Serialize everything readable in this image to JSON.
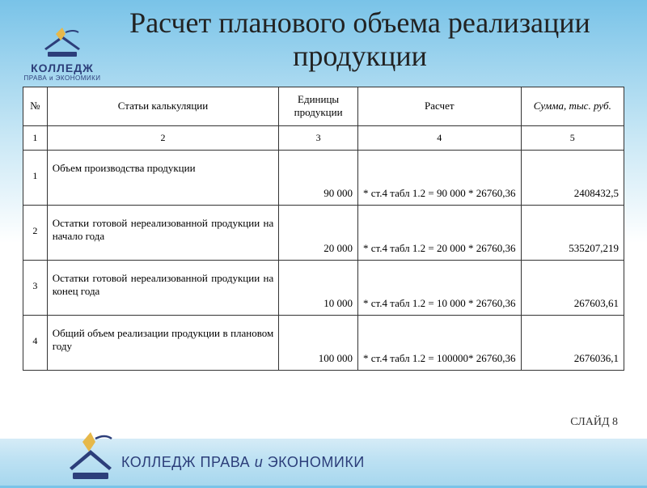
{
  "title": "Расчет планового объема реализации продукции",
  "logo": {
    "brand": "КОЛЛЕДЖ",
    "sub": "ПРАВА и ЭКОНОМИКИ"
  },
  "table": {
    "headers": {
      "num": "№",
      "article": "Статьи калькуляции",
      "units": "Единицы продукции",
      "calc": "Расчет",
      "sum": "Сумма, тыс. руб."
    },
    "colnums": [
      "1",
      "2",
      "3",
      "4",
      "5"
    ],
    "rows": [
      {
        "n": "1",
        "article": "Объем производства продукции",
        "units": "90 000",
        "calc": "* ст.4 табл 1.2 = 90 000 * 26760,36",
        "sum": "2408432,5"
      },
      {
        "n": "2",
        "article": "Остатки готовой нереализованной продукции на начало года",
        "units": "20 000",
        "calc": "* ст.4 табл 1.2 = 20 000 * 26760,36",
        "sum": "535207,219"
      },
      {
        "n": "3",
        "article": "Остатки готовой нереализованной продукции на конец года",
        "units": "10 000",
        "calc": "* ст.4 табл 1.2 = 10 000 * 26760,36",
        "sum": "267603,61"
      },
      {
        "n": "4",
        "article": "Общий объем реализации продукции в плановом году",
        "units": "100 000",
        "calc": "* ст.4 табл 1.2 = 100000* 26760,36",
        "sum": "2676036,1"
      }
    ]
  },
  "slide_label": "СЛАЙД 8",
  "footer": {
    "a": "КОЛЛЕДЖ ПРАВА ",
    "b": "и",
    "c": " ЭКОНОМИКИ"
  },
  "colors": {
    "border": "#333333",
    "brand": "#2c3e7a"
  }
}
